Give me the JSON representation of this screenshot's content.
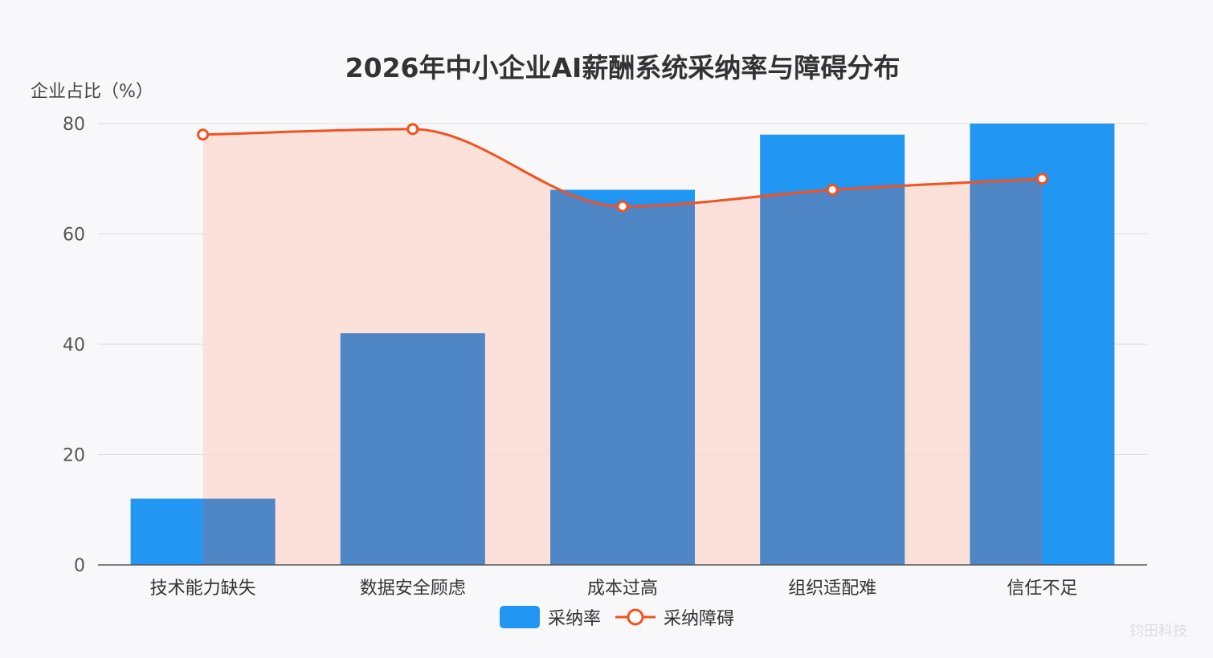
{
  "chart_data": {
    "type": "bar",
    "title": "2026年中小企业AI薪酬系统采纳率与障碍分布",
    "xlabel": "",
    "ylabel": "企业占比（%）",
    "categories": [
      "技术能力缺失",
      "数据安全顾虑",
      "成本过高",
      "组织适配难",
      "信任不足"
    ],
    "ylim": [
      0,
      80
    ],
    "yticks": [
      0,
      20,
      40,
      60,
      80
    ],
    "grid": true,
    "legend_position": "bottom",
    "series": [
      {
        "name": "采纳率",
        "type": "bar",
        "color": "#2196f3",
        "values": [
          12,
          42,
          68,
          78,
          80
        ]
      },
      {
        "name": "采纳障碍",
        "type": "area-line",
        "color": "#f4511e",
        "fill": "#fdd9d0",
        "values": [
          78,
          79,
          65,
          68,
          70
        ]
      }
    ]
  },
  "watermark": "钧田科技"
}
